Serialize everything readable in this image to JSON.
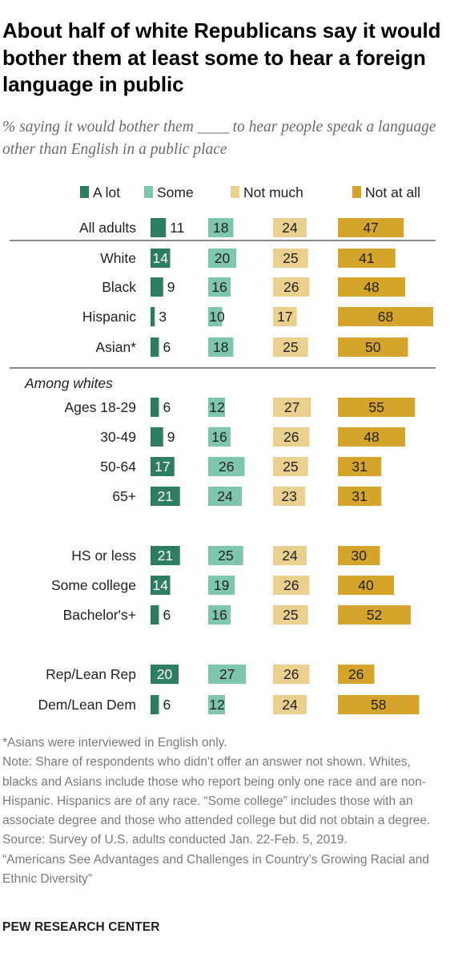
{
  "title": "About half of white Republicans say it would bother them at least some to hear a foreign language in public",
  "subtitle": "% saying it would bother them ____ to hear people speak a language other than English in a public place",
  "notes": [
    "*Asians were interviewed in English only.",
    "Note: Share of respondents who didn’t offer an answer not shown. Whites, blacks and Asians include those who report being only one race and are non-Hispanic. Hispanics are of any race. “Some college” includes those with an associate degree and those who attended college but did not obtain a degree.",
    "Source: Survey of U.S. adults conducted Jan. 22-Feb. 5, 2019.",
    "“Americans See Advantages and Challenges in Country’s Growing Racial and Ethnic Diversity”"
  ],
  "source_org": "PEW RESEARCH CENTER",
  "colors": {
    "a_lot": "#2e7d63",
    "some": "#7ec6ae",
    "not_much": "#e9d08e",
    "not_at_all": "#d4a52a"
  },
  "chart_data": {
    "type": "bar",
    "orientation": "horizontal",
    "stacked": false,
    "legend_position": "top",
    "series": [
      {
        "name": "A lot",
        "values": [
          11,
          14,
          9,
          3,
          6,
          6,
          9,
          17,
          21,
          21,
          14,
          6,
          20,
          6
        ]
      },
      {
        "name": "Some",
        "values": [
          18,
          20,
          16,
          10,
          18,
          12,
          16,
          26,
          24,
          25,
          19,
          16,
          27,
          12
        ]
      },
      {
        "name": "Not much",
        "values": [
          24,
          25,
          26,
          17,
          25,
          27,
          26,
          25,
          23,
          24,
          26,
          25,
          26,
          24
        ]
      },
      {
        "name": "Not at all",
        "values": [
          47,
          41,
          48,
          68,
          50,
          55,
          48,
          31,
          31,
          30,
          40,
          52,
          26,
          58
        ]
      }
    ],
    "categories": [
      "All adults",
      "White",
      "Black",
      "Hispanic",
      "Asian*",
      "Ages 18-29",
      "30-49",
      "50-64",
      "65+",
      "HS or less",
      "Some college",
      "Bachelor's+",
      "Rep/Lean Rep",
      "Dem/Lean Dem"
    ],
    "group_labels": [
      "Among whites"
    ]
  }
}
